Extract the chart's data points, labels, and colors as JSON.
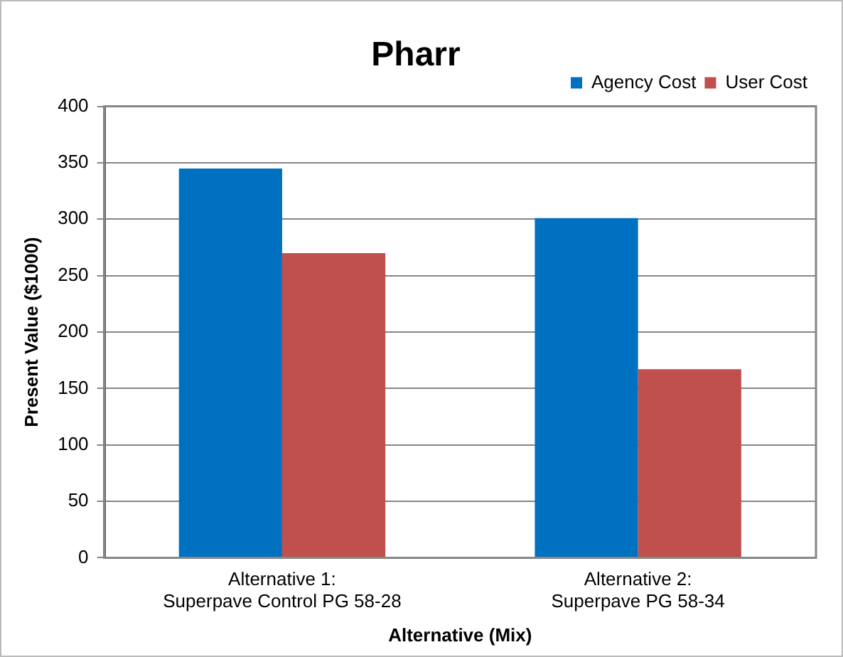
{
  "chart_data": {
    "type": "bar",
    "title": "Pharr",
    "xlabel": "Alternative (Mix)",
    "ylabel": "Present Value ($1000)",
    "categories": [
      "Alternative 1:\nSuperpave Control PG 58-28",
      "Alternative 2:\nSuperpave PG 58-34"
    ],
    "series": [
      {
        "name": "Agency Cost",
        "color": "#0070c0",
        "values": [
          345,
          301
        ]
      },
      {
        "name": "User Cost",
        "color": "#c0504d",
        "values": [
          270,
          167
        ]
      }
    ],
    "ylim": [
      0,
      400
    ],
    "yticks": [
      0,
      50,
      100,
      150,
      200,
      250,
      300,
      350,
      400
    ],
    "grid": "y",
    "legend": "top right"
  }
}
